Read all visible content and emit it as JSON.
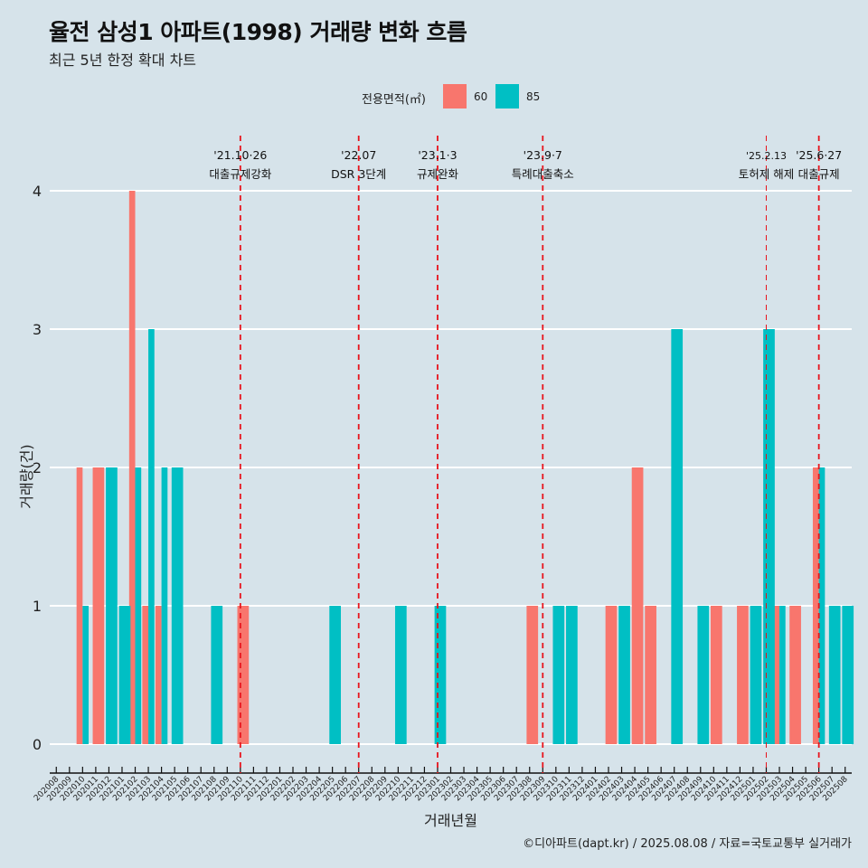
{
  "title": "율전 삼성1 아파트(1998) 거래량 변화 흐름",
  "subtitle": "최근 5년 한정 확대 차트",
  "caption": "©디아파트(dapt.kr) / 2025.08.08 / 자료=국토교통부 실거래가",
  "legend": {
    "title": "전용면적(㎡)",
    "items": [
      {
        "label": "60",
        "color": "#f8766d"
      },
      {
        "label": "85",
        "color": "#00bfc4"
      }
    ]
  },
  "chart_data": {
    "type": "bar",
    "title": "율전 삼성1 아파트(1998) 거래량 변화 흐름",
    "subtitle": "최근 5년 한정 확대 차트",
    "xlabel": "거래년월",
    "ylabel": "거래량(건)",
    "ylim": [
      0,
      4
    ],
    "y_ticks": [
      0,
      1,
      2,
      3,
      4
    ],
    "grid": true,
    "legend_position": "top",
    "categories": [
      "202008",
      "202009",
      "202010",
      "202011",
      "202012",
      "202101",
      "202102",
      "202103",
      "202104",
      "202105",
      "202106",
      "202107",
      "202108",
      "202109",
      "202110",
      "202111",
      "202112",
      "202201",
      "202202",
      "202203",
      "202204",
      "202205",
      "202206",
      "202207",
      "202208",
      "202209",
      "202210",
      "202211",
      "202212",
      "202301",
      "202302",
      "202303",
      "202304",
      "202305",
      "202306",
      "202307",
      "202308",
      "202309",
      "202310",
      "202311",
      "202312",
      "202401",
      "202402",
      "202403",
      "202404",
      "202405",
      "202406",
      "202407",
      "202408",
      "202409",
      "202410",
      "202411",
      "202412",
      "202501",
      "202502",
      "202503",
      "202504",
      "202505",
      "202506",
      "202507",
      "202508"
    ],
    "series": [
      {
        "name": "60",
        "color": "#f8766d",
        "values": [
          0,
          0,
          2,
          2,
          0,
          0,
          4,
          1,
          1,
          0,
          0,
          0,
          0,
          0,
          1,
          0,
          0,
          0,
          0,
          0,
          0,
          0,
          0,
          0,
          0,
          0,
          0,
          0,
          0,
          0,
          0,
          0,
          0,
          0,
          0,
          0,
          1,
          0,
          0,
          0,
          0,
          0,
          1,
          0,
          2,
          1,
          0,
          0,
          0,
          0,
          1,
          0,
          1,
          0,
          0,
          1,
          1,
          0,
          2,
          0,
          0
        ]
      },
      {
        "name": "85",
        "color": "#00bfc4",
        "values": [
          0,
          0,
          1,
          0,
          2,
          1,
          2,
          3,
          2,
          2,
          0,
          0,
          1,
          0,
          0,
          0,
          0,
          0,
          0,
          0,
          0,
          1,
          0,
          0,
          0,
          0,
          1,
          0,
          0,
          1,
          0,
          0,
          0,
          0,
          0,
          0,
          0,
          0,
          1,
          1,
          0,
          0,
          0,
          1,
          0,
          0,
          0,
          3,
          0,
          1,
          0,
          0,
          0,
          1,
          3,
          1,
          0,
          0,
          2,
          1,
          1
        ]
      }
    ],
    "events": [
      {
        "month": "202110",
        "date": "'21.10·26",
        "label": "대출규제강화"
      },
      {
        "month": "202207",
        "date": "'22.07",
        "label": "DSR 3단계"
      },
      {
        "month": "202301",
        "date": "'23.1·3",
        "label": "규제완화"
      },
      {
        "month": "202309",
        "date": "'23.9·7",
        "label": "특례대출축소"
      },
      {
        "month": "202502",
        "date": "'25.2.13",
        "label": "토허제 해제"
      },
      {
        "month": "202506",
        "date": "'25.6·27",
        "label": "대출규제"
      }
    ]
  }
}
